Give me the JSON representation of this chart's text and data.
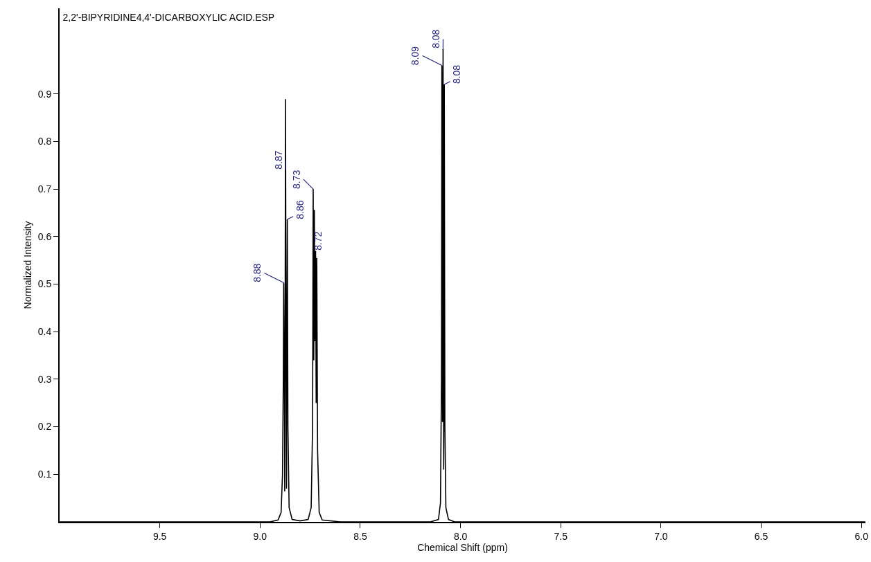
{
  "chart_data": {
    "type": "line",
    "title": "2,2'-BIPYRIDINE4,4'-DICARBOXYLIC ACID.ESP",
    "xlabel": "Chemical Shift (ppm)",
    "ylabel": "Normalized Intensity",
    "xlim": [
      10.0,
      5.98
    ],
    "xticks": [
      9.5,
      {
        "value": 9,
        "label": "9.0"
      },
      8.5,
      {
        "value": 8,
        "label": "8.0"
      },
      7.5,
      {
        "value": 7,
        "label": "7.0"
      },
      6.5,
      {
        "value": 6,
        "label": "6.0"
      }
    ],
    "ylim": [
      0,
      1.08
    ],
    "yticks": [
      0.1,
      0.2,
      0.3,
      0.4,
      0.5,
      0.6,
      0.7,
      0.8,
      0.9
    ],
    "grid": false,
    "marker": "none",
    "line_style": "solid",
    "series": [
      {
        "color": "#000000",
        "x": [
          10.0,
          8.95,
          8.91,
          8.895,
          8.888,
          8.884,
          8.882,
          8.879,
          8.877,
          8.875,
          8.873,
          8.87,
          8.868,
          8.866,
          8.864,
          8.861,
          8.855,
          8.84,
          8.8,
          8.76,
          8.745,
          8.738,
          8.735,
          8.732,
          8.729,
          8.726,
          8.723,
          8.72,
          8.717,
          8.713,
          8.705,
          8.69,
          8.6,
          8.15,
          8.11,
          8.1,
          8.095,
          8.093,
          8.09,
          8.087,
          8.084,
          8.081,
          8.078,
          8.073,
          8.06,
          8.03,
          5.98
        ],
        "values": [
          0,
          0,
          0.004,
          0.02,
          0.1,
          0.3,
          0.503,
          0.3,
          0.064,
          0.4,
          0.889,
          0.3,
          0.07,
          0.4,
          0.636,
          0.2,
          0.03,
          0.005,
          0.002,
          0.005,
          0.03,
          0.2,
          0.7,
          0.34,
          0.656,
          0.38,
          0.57,
          0.25,
          0.555,
          0.15,
          0.02,
          0.004,
          0,
          0,
          0.005,
          0.04,
          0.3,
          0.96,
          0.21,
          0.995,
          0.11,
          0.92,
          0.2,
          0.03,
          0.005,
          0,
          0
        ]
      }
    ],
    "annotations": [
      {
        "text": "8.88",
        "x": 8.882,
        "y": 0.503
      },
      {
        "text": "8.87",
        "x": 8.873,
        "y": 0.74
      },
      {
        "text": "8.86",
        "x": 8.864,
        "y": 0.636
      },
      {
        "text": "8.73",
        "x": 8.735,
        "y": 0.7
      },
      {
        "text": "8.72",
        "x": 8.723,
        "y": 0.57
      },
      {
        "text": "8.09",
        "x": 8.093,
        "y": 0.96
      },
      {
        "text": "8.08",
        "x": 8.087,
        "y": 0.995
      },
      {
        "text": "8.08",
        "x": 8.081,
        "y": 0.92
      }
    ]
  }
}
